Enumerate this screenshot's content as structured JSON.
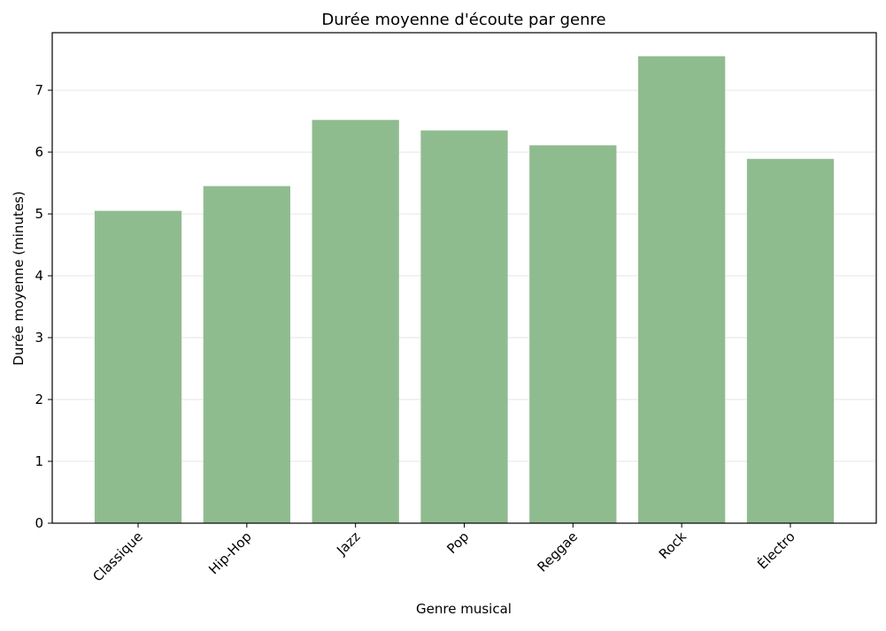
{
  "chart_data": {
    "type": "bar",
    "title": "Durée moyenne d'écoute par genre",
    "xlabel": "Genre musical",
    "ylabel": "Durée moyenne (minutes)",
    "categories": [
      "Classique",
      "Hip-Hop",
      "Jazz",
      "Pop",
      "Reggae",
      "Rock",
      "Électro"
    ],
    "values": [
      5.05,
      5.45,
      6.52,
      6.35,
      6.11,
      7.55,
      5.89
    ],
    "ylim": [
      0,
      7.93
    ],
    "yticks": [
      0,
      1,
      2,
      3,
      4,
      5,
      6,
      7
    ],
    "grid": "horizontal",
    "bar_color": "#8fbc8f",
    "grid_color": "#e6e6e6"
  }
}
